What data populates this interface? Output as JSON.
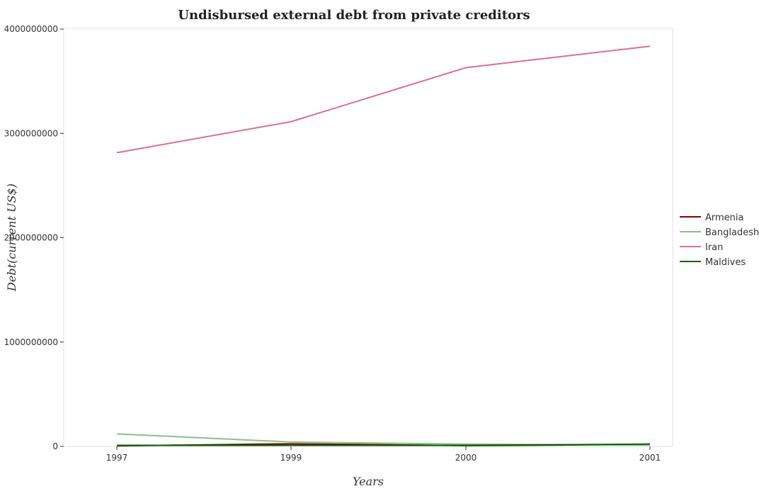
{
  "chart_data": {
    "type": "line",
    "title": "Undisbursed external debt from private creditors",
    "xlabel": "Years",
    "ylabel": "Debt(current US$)",
    "categories": [
      "1997",
      "1999",
      "2000",
      "2001"
    ],
    "y_ticks": [
      "0",
      "1000000000",
      "2000000000",
      "3000000000",
      "4000000000"
    ],
    "ylim": [
      0,
      4000000000
    ],
    "grid": false,
    "legend_position": "right",
    "series": [
      {
        "name": "Armenia",
        "color": "#8b0000",
        "values": [
          5000000,
          25000000,
          8000000,
          18000000
        ]
      },
      {
        "name": "Bangladesh",
        "color": "#8fbc8f",
        "values": [
          120000000,
          42000000,
          22000000,
          12000000
        ]
      },
      {
        "name": "Iran",
        "color": "#db7093",
        "values": [
          2815000000,
          3112000000,
          3630000000,
          3835000000
        ]
      },
      {
        "name": "Maldives",
        "color": "#006400",
        "values": [
          10000000,
          10000000,
          10000000,
          22000000
        ]
      }
    ]
  }
}
